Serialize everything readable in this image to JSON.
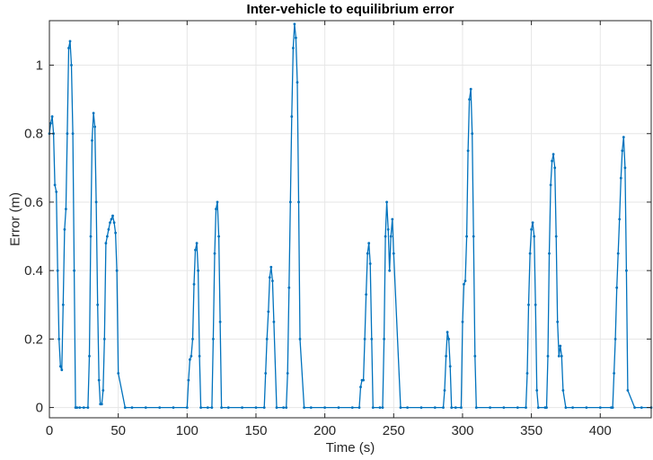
{
  "chart_data": {
    "type": "line",
    "title": "Inter-vehicle to equilibrium error",
    "xlabel": "Time (s)",
    "ylabel": "Error (m)",
    "xlim": [
      0,
      437
    ],
    "ylim": [
      -0.03,
      1.13
    ],
    "xticks": [
      0,
      50,
      100,
      150,
      200,
      250,
      300,
      350,
      400
    ],
    "xtick_labels": [
      "0",
      "50",
      "100",
      "150",
      "200",
      "250",
      "300",
      "350",
      "400"
    ],
    "yticks": [
      0,
      0.2,
      0.4,
      0.6,
      0.8,
      1
    ],
    "ytick_labels": [
      "0",
      "0.2",
      "0.4",
      "0.6",
      "0.8",
      "1"
    ],
    "grid": true,
    "series": [
      {
        "color": "#0072bd",
        "marker": "dot",
        "x": [
          0,
          1,
          2,
          3,
          4,
          5,
          6,
          7,
          8,
          9,
          10,
          11,
          12,
          13,
          14,
          15,
          16,
          17,
          18,
          19,
          20,
          22,
          25,
          28,
          29,
          30,
          31,
          32,
          33,
          34,
          35,
          36,
          37,
          38,
          39,
          40,
          41,
          42,
          43,
          44,
          45,
          46,
          47,
          48,
          49,
          50,
          55,
          60,
          70,
          80,
          90,
          100,
          101,
          102,
          103,
          104,
          105,
          106,
          107,
          108,
          109,
          110,
          115,
          118,
          119,
          120,
          121,
          122,
          123,
          124,
          125,
          130,
          140,
          150,
          156,
          157,
          158,
          159,
          160,
          161,
          162,
          163,
          165,
          170,
          172,
          173,
          174,
          175,
          176,
          177,
          178,
          179,
          180,
          181,
          182,
          185,
          190,
          200,
          210,
          220,
          225,
          226,
          227,
          228,
          229,
          230,
          231,
          232,
          233,
          234,
          235,
          240,
          242,
          243,
          244,
          245,
          246,
          247,
          248,
          249,
          250,
          255,
          260,
          270,
          280,
          286,
          287,
          288,
          289,
          290,
          291,
          292,
          295,
          299,
          300,
          301,
          302,
          303,
          304,
          305,
          306,
          307,
          308,
          309,
          310,
          320,
          330,
          340,
          346,
          347,
          348,
          349,
          350,
          351,
          352,
          353,
          354,
          355,
          360,
          361,
          362,
          363,
          364,
          365,
          366,
          367,
          368,
          369,
          370,
          371,
          372,
          373,
          375,
          380,
          390,
          400,
          408,
          409,
          410,
          411,
          412,
          413,
          414,
          415,
          416,
          417,
          418,
          419,
          420,
          425,
          430,
          437
        ],
        "y": [
          0.8,
          0.83,
          0.85,
          0.8,
          0.65,
          0.63,
          0.4,
          0.2,
          0.12,
          0.11,
          0.3,
          0.52,
          0.58,
          0.8,
          1.05,
          1.07,
          1.0,
          0.8,
          0.4,
          0.0,
          0.0,
          0.0,
          0.0,
          0.0,
          0.15,
          0.5,
          0.78,
          0.86,
          0.82,
          0.6,
          0.3,
          0.08,
          0.01,
          0.01,
          0.05,
          0.2,
          0.48,
          0.5,
          0.52,
          0.54,
          0.55,
          0.56,
          0.54,
          0.51,
          0.4,
          0.1,
          0.0,
          0.0,
          0.0,
          0.0,
          0.0,
          0.0,
          0.08,
          0.14,
          0.15,
          0.2,
          0.36,
          0.46,
          0.48,
          0.4,
          0.15,
          0.0,
          0.0,
          0.0,
          0.2,
          0.45,
          0.58,
          0.6,
          0.5,
          0.25,
          0.0,
          0.0,
          0.0,
          0.0,
          0.0,
          0.1,
          0.2,
          0.28,
          0.38,
          0.41,
          0.37,
          0.25,
          0.0,
          0.0,
          0.0,
          0.1,
          0.35,
          0.6,
          0.85,
          1.05,
          1.12,
          1.08,
          0.95,
          0.6,
          0.2,
          0.0,
          0.0,
          0.0,
          0.0,
          0.0,
          0.0,
          0.06,
          0.08,
          0.08,
          0.2,
          0.33,
          0.45,
          0.48,
          0.42,
          0.2,
          0.0,
          0.0,
          0.0,
          0.2,
          0.5,
          0.6,
          0.52,
          0.4,
          0.5,
          0.55,
          0.45,
          0.0,
          0.0,
          0.0,
          0.0,
          0.0,
          0.05,
          0.15,
          0.22,
          0.2,
          0.12,
          0.0,
          0.0,
          0.0,
          0.25,
          0.36,
          0.37,
          0.5,
          0.75,
          0.9,
          0.93,
          0.8,
          0.5,
          0.15,
          0.0,
          0.0,
          0.0,
          0.0,
          0.0,
          0.1,
          0.3,
          0.45,
          0.52,
          0.54,
          0.5,
          0.3,
          0.05,
          0.0,
          0.0,
          0.0,
          0.15,
          0.45,
          0.65,
          0.72,
          0.74,
          0.7,
          0.5,
          0.25,
          0.15,
          0.18,
          0.15,
          0.05,
          0.0,
          0.0,
          0.0,
          0.0,
          0.0,
          0.0,
          0.1,
          0.2,
          0.35,
          0.45,
          0.55,
          0.67,
          0.75,
          0.79,
          0.7,
          0.4,
          0.05,
          0.0,
          0.0,
          0.0
        ]
      }
    ]
  }
}
